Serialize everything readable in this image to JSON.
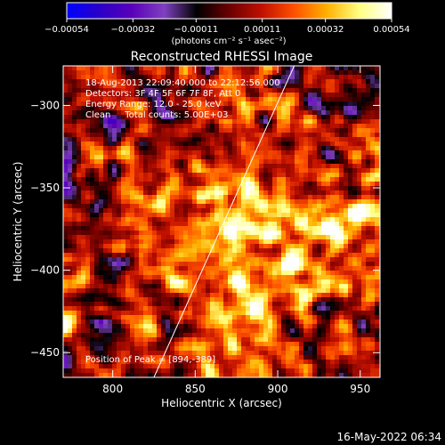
{
  "chart_data": {
    "type": "heatmap",
    "title": "Reconstructed RHESSI Image",
    "xlabel": "Heliocentric X (arcsec)",
    "ylabel": "Heliocentric Y (arcsec)",
    "xlim": [
      770,
      962
    ],
    "ylim": [
      -465,
      -276
    ],
    "x_ticks": [
      800,
      850,
      900,
      950
    ],
    "y_ticks": [
      -300,
      -350,
      -400,
      -450
    ],
    "x_tick_labels": [
      "800",
      "850",
      "900",
      "950"
    ],
    "y_tick_labels": [
      "−300",
      "−350",
      "−400",
      "−450"
    ],
    "colorbar": {
      "range": [
        -0.00054,
        0.00054
      ],
      "tick_values": [
        -0.00054,
        -0.00032,
        -0.00011,
        0.00011,
        0.00032,
        0.00054
      ],
      "tick_labels": [
        "−0.00054",
        "−0.00032",
        "−0.00011",
        "0.00011",
        "0.00032",
        "0.00054"
      ],
      "units_label": "(photons cm⁻² s⁻¹ asec⁻²)",
      "colors": [
        "#0000ff",
        "#2a00c8",
        "#5a00b8",
        "#8040c0",
        "#000000",
        "#6a0000",
        "#c01000",
        "#ff5000",
        "#ffb000",
        "#ffff80",
        "#ffffff"
      ]
    },
    "annotations": [
      "18-Aug-2013 22:09:40.000 to 22:12:56.000",
      "Detectors: 3F 4F 5F 6F 7F 8F, Att 0",
      "Energy Range: 12.0 - 25.0 keV",
      "Clean     Total counts: 5.00E+03",
      "Position of Peak = [894,-389]"
    ],
    "peak": {
      "x": 894,
      "y": -389
    },
    "limb_line": [
      [
        825,
        -465
      ],
      [
        910,
        -276
      ]
    ],
    "timestamp": "16-May-2022 06:34"
  }
}
